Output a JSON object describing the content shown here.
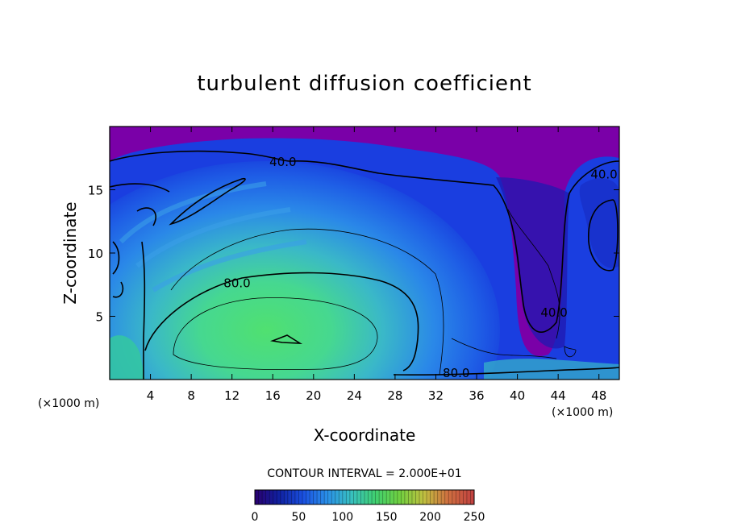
{
  "chart_data": {
    "type": "heatmap",
    "title": "turbulent diffusion coefficient",
    "xlabel": "X-coordinate",
    "ylabel": "Z-coordinate",
    "x_unit_left": "(×1000 m)",
    "x_unit_right": "(×1000 m)",
    "xlim": [
      0,
      50
    ],
    "ylim": [
      0,
      20
    ],
    "x_ticks": [
      "4",
      "8",
      "12",
      "16",
      "20",
      "24",
      "28",
      "32",
      "36",
      "40",
      "44",
      "48"
    ],
    "x_tick_values": [
      4,
      8,
      12,
      16,
      20,
      24,
      28,
      32,
      36,
      40,
      44,
      48
    ],
    "y_ticks": [
      "5",
      "10",
      "15"
    ],
    "y_tick_values": [
      5,
      10,
      15
    ],
    "contour_interval_label": "CONTOUR INTERVAL = 2.000E+01",
    "contour_interval": 20,
    "contour_labels": [
      {
        "text": "40.0",
        "x": 17,
        "y": 17.2
      },
      {
        "text": "40.0",
        "x": 48.5,
        "y": 16.2
      },
      {
        "text": "80.0",
        "x": 12.5,
        "y": 7.6
      },
      {
        "text": "80.0",
        "x": 34,
        "y": 0.5
      },
      {
        "text": "40.0",
        "x": 43.6,
        "y": 5.3
      }
    ],
    "colorbar": {
      "range": [
        0,
        250
      ],
      "tick_labels": [
        "0",
        "50",
        "100",
        "150",
        "200",
        "250"
      ],
      "tick_values": [
        0,
        50,
        100,
        150,
        200,
        250
      ],
      "colors": [
        "#2a0070",
        "#1020a0",
        "#1a50e0",
        "#2a90e8",
        "#38c0c0",
        "#40d070",
        "#70d040",
        "#c0c040",
        "#d07040",
        "#c04040"
      ]
    },
    "field_colors": {
      "background": "#7a00a8",
      "low": "#1830d8",
      "mid": "#2a78e8",
      "high": "#4ad0a0",
      "peak": "#50e070"
    }
  }
}
